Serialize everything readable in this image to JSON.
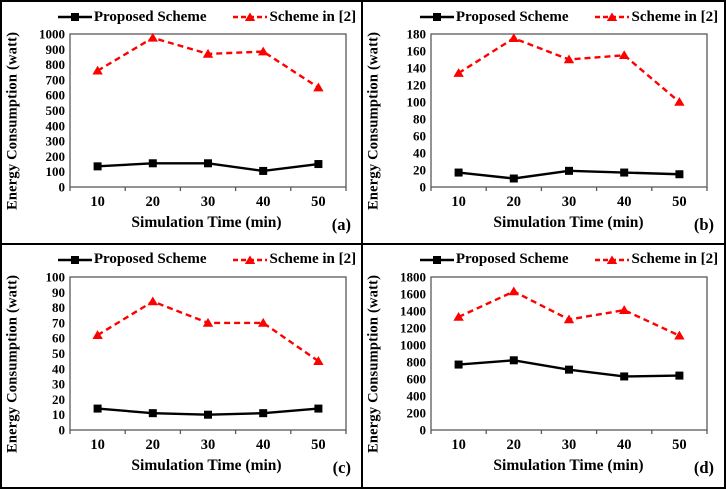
{
  "figure": {
    "legend": {
      "proposed": "Proposed Scheme",
      "scheme2": "Scheme in [2]"
    },
    "colors": {
      "proposed": "#000000",
      "scheme2": "#ff0000",
      "frame": "#595959",
      "grid_border": "#000000"
    }
  },
  "chart_data": [
    {
      "type": "line",
      "tag": "(a)",
      "xlabel": "Simulation Time (min)",
      "ylabel": "Energy Consumption (watt)",
      "x": [
        10,
        20,
        30,
        40,
        50
      ],
      "ylim": [
        0,
        1000
      ],
      "ystep": 100,
      "grid": false,
      "legend_position": "top",
      "series": [
        {
          "name": "Proposed Scheme",
          "color": "#000000",
          "line": "solid",
          "marker": "square",
          "values": [
            135,
            155,
            155,
            105,
            150
          ]
        },
        {
          "name": "Scheme in [2]",
          "color": "#ff0000",
          "line": "dashed",
          "marker": "triangle",
          "values": [
            760,
            975,
            870,
            885,
            650
          ]
        }
      ]
    },
    {
      "type": "line",
      "tag": "(b)",
      "xlabel": "Simulation Time (min)",
      "ylabel": "Energy Consumption (watt)",
      "x": [
        10,
        20,
        30,
        40,
        50
      ],
      "ylim": [
        0,
        180
      ],
      "ystep": 20,
      "grid": false,
      "legend_position": "top",
      "series": [
        {
          "name": "Proposed Scheme",
          "color": "#000000",
          "line": "solid",
          "marker": "square",
          "values": [
            17,
            10,
            19,
            17,
            15
          ]
        },
        {
          "name": "Scheme in [2]",
          "color": "#ff0000",
          "line": "dashed",
          "marker": "triangle",
          "values": [
            134,
            175,
            150,
            155,
            100
          ]
        }
      ]
    },
    {
      "type": "line",
      "tag": "(c)",
      "xlabel": "Simulation Time (min)",
      "ylabel": "Energy Consumption (watt)",
      "x": [
        10,
        20,
        30,
        40,
        50
      ],
      "ylim": [
        0,
        100
      ],
      "ystep": 10,
      "grid": false,
      "legend_position": "top",
      "series": [
        {
          "name": "Proposed Scheme",
          "color": "#000000",
          "line": "solid",
          "marker": "square",
          "values": [
            14,
            11,
            10,
            11,
            14
          ]
        },
        {
          "name": "Scheme in [2]",
          "color": "#ff0000",
          "line": "dashed",
          "marker": "triangle",
          "values": [
            62,
            84,
            70,
            70,
            45
          ]
        }
      ]
    },
    {
      "type": "line",
      "tag": "(d)",
      "xlabel": "Simulation Time (min)",
      "ylabel": "Energy Consumption (watt)",
      "x": [
        10,
        20,
        30,
        40,
        50
      ],
      "ylim": [
        0,
        1800
      ],
      "ystep": 200,
      "grid": false,
      "legend_position": "top",
      "series": [
        {
          "name": "Proposed Scheme",
          "color": "#000000",
          "line": "solid",
          "marker": "square",
          "values": [
            770,
            820,
            710,
            630,
            640
          ]
        },
        {
          "name": "Scheme in [2]",
          "color": "#ff0000",
          "line": "dashed",
          "marker": "triangle",
          "values": [
            1330,
            1630,
            1300,
            1410,
            1110
          ]
        }
      ]
    }
  ]
}
